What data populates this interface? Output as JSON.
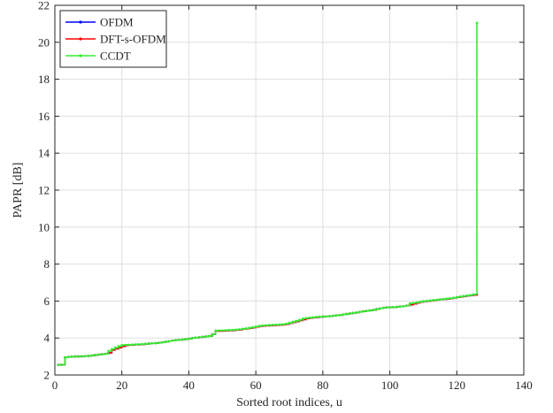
{
  "chart_data": {
    "type": "line",
    "xlabel": "Sorted root indices, u",
    "ylabel": "PAPR [dB]",
    "xlim": [
      0,
      140
    ],
    "ylim": [
      2,
      22
    ],
    "xticks": [
      0,
      20,
      40,
      60,
      80,
      100,
      120,
      140
    ],
    "yticks": [
      2,
      4,
      6,
      8,
      10,
      12,
      14,
      16,
      18,
      20,
      22
    ],
    "grid": true,
    "legend_position": "top-left",
    "x": [
      1,
      2,
      3,
      4,
      5,
      6,
      7,
      8,
      9,
      10,
      11,
      12,
      13,
      14,
      15,
      16,
      17,
      18,
      19,
      20,
      21,
      22,
      23,
      24,
      25,
      26,
      27,
      28,
      29,
      30,
      31,
      32,
      33,
      34,
      35,
      36,
      37,
      38,
      39,
      40,
      41,
      42,
      43,
      44,
      45,
      46,
      47,
      48,
      49,
      50,
      51,
      52,
      53,
      54,
      55,
      56,
      57,
      58,
      59,
      60,
      61,
      62,
      63,
      64,
      65,
      66,
      67,
      68,
      69,
      70,
      71,
      72,
      73,
      74,
      75,
      76,
      77,
      78,
      79,
      80,
      81,
      82,
      83,
      84,
      85,
      86,
      87,
      88,
      89,
      90,
      91,
      92,
      93,
      94,
      95,
      96,
      97,
      98,
      99,
      100,
      101,
      102,
      103,
      104,
      105,
      106,
      107,
      108,
      109,
      110,
      111,
      112,
      113,
      114,
      115,
      116,
      117,
      118,
      119,
      120,
      121,
      122,
      123,
      124,
      125,
      126
    ],
    "series": [
      {
        "name": "OFDM",
        "color": "#0000ff",
        "values": [
          2.55,
          2.55,
          2.95,
          2.97,
          2.99,
          3.0,
          3.0,
          3.01,
          3.02,
          3.03,
          3.05,
          3.08,
          3.1,
          3.12,
          3.14,
          3.2,
          3.35,
          3.42,
          3.48,
          3.55,
          3.6,
          3.62,
          3.63,
          3.64,
          3.65,
          3.66,
          3.68,
          3.7,
          3.71,
          3.72,
          3.74,
          3.76,
          3.8,
          3.83,
          3.86,
          3.88,
          3.9,
          3.92,
          3.94,
          3.96,
          4.0,
          4.02,
          4.04,
          4.06,
          4.08,
          4.1,
          4.2,
          4.38,
          4.38,
          4.39,
          4.4,
          4.41,
          4.42,
          4.43,
          4.45,
          4.48,
          4.5,
          4.53,
          4.56,
          4.6,
          4.64,
          4.66,
          4.67,
          4.68,
          4.69,
          4.7,
          4.71,
          4.72,
          4.75,
          4.8,
          4.85,
          4.9,
          4.95,
          5.0,
          5.05,
          5.08,
          5.1,
          5.12,
          5.14,
          5.16,
          5.17,
          5.18,
          5.2,
          5.22,
          5.24,
          5.27,
          5.3,
          5.33,
          5.36,
          5.38,
          5.41,
          5.44,
          5.46,
          5.49,
          5.52,
          5.56,
          5.6,
          5.63,
          5.65,
          5.66,
          5.67,
          5.68,
          5.7,
          5.72,
          5.75,
          5.8,
          5.85,
          5.9,
          5.95,
          5.98,
          6.0,
          6.02,
          6.04,
          6.06,
          6.08,
          6.1,
          6.12,
          6.14,
          6.17,
          6.2,
          6.23,
          6.26,
          6.29,
          6.31,
          6.33,
          6.35
        ]
      },
      {
        "name": "DFT-s-OFDM",
        "color": "#ff0000",
        "values": [
          2.55,
          2.55,
          2.95,
          2.97,
          2.99,
          3.0,
          3.0,
          3.01,
          3.02,
          3.03,
          3.05,
          3.08,
          3.1,
          3.12,
          3.14,
          3.2,
          3.35,
          3.42,
          3.48,
          3.55,
          3.6,
          3.62,
          3.63,
          3.64,
          3.65,
          3.66,
          3.68,
          3.7,
          3.71,
          3.72,
          3.74,
          3.76,
          3.8,
          3.83,
          3.86,
          3.88,
          3.9,
          3.92,
          3.94,
          3.96,
          4.0,
          4.02,
          4.04,
          4.06,
          4.08,
          4.1,
          4.2,
          4.38,
          4.38,
          4.39,
          4.4,
          4.41,
          4.42,
          4.43,
          4.45,
          4.48,
          4.5,
          4.53,
          4.56,
          4.6,
          4.64,
          4.66,
          4.67,
          4.68,
          4.69,
          4.7,
          4.71,
          4.72,
          4.75,
          4.8,
          4.85,
          4.9,
          4.95,
          5.0,
          5.05,
          5.08,
          5.1,
          5.12,
          5.14,
          5.16,
          5.17,
          5.18,
          5.2,
          5.22,
          5.24,
          5.27,
          5.3,
          5.33,
          5.36,
          5.38,
          5.41,
          5.44,
          5.46,
          5.49,
          5.52,
          5.56,
          5.6,
          5.63,
          5.65,
          5.66,
          5.67,
          5.68,
          5.7,
          5.72,
          5.75,
          5.8,
          5.85,
          5.9,
          5.95,
          5.98,
          6.0,
          6.02,
          6.04,
          6.06,
          6.08,
          6.1,
          6.12,
          6.14,
          6.17,
          6.2,
          6.23,
          6.26,
          6.29,
          6.31,
          6.33,
          6.35
        ]
      },
      {
        "name": "CCDT",
        "color": "#33ee33",
        "values": [
          2.55,
          2.55,
          2.95,
          2.97,
          2.99,
          3.0,
          3.0,
          3.01,
          3.02,
          3.03,
          3.05,
          3.08,
          3.1,
          3.12,
          3.14,
          3.3,
          3.4,
          3.48,
          3.55,
          3.62,
          3.63,
          3.63,
          3.64,
          3.65,
          3.66,
          3.67,
          3.68,
          3.7,
          3.71,
          3.72,
          3.74,
          3.76,
          3.8,
          3.83,
          3.86,
          3.88,
          3.9,
          3.92,
          3.94,
          3.96,
          4.0,
          4.02,
          4.04,
          4.06,
          4.08,
          4.1,
          4.2,
          4.4,
          4.41,
          4.41,
          4.42,
          4.43,
          4.44,
          4.45,
          4.47,
          4.49,
          4.52,
          4.55,
          4.58,
          4.62,
          4.66,
          4.68,
          4.69,
          4.7,
          4.71,
          4.72,
          4.73,
          4.74,
          4.77,
          4.82,
          4.88,
          4.93,
          4.98,
          5.05,
          5.08,
          5.1,
          5.12,
          5.14,
          5.15,
          5.16,
          5.17,
          5.18,
          5.2,
          5.22,
          5.24,
          5.27,
          5.3,
          5.33,
          5.36,
          5.38,
          5.41,
          5.44,
          5.46,
          5.49,
          5.52,
          5.56,
          5.6,
          5.63,
          5.65,
          5.66,
          5.67,
          5.68,
          5.7,
          5.72,
          5.75,
          5.88,
          5.9,
          5.93,
          5.96,
          5.99,
          6.01,
          6.03,
          6.05,
          6.07,
          6.09,
          6.11,
          6.13,
          6.15,
          6.18,
          6.21,
          6.24,
          6.27,
          6.3,
          6.32,
          6.36,
          21.05
        ]
      }
    ]
  }
}
